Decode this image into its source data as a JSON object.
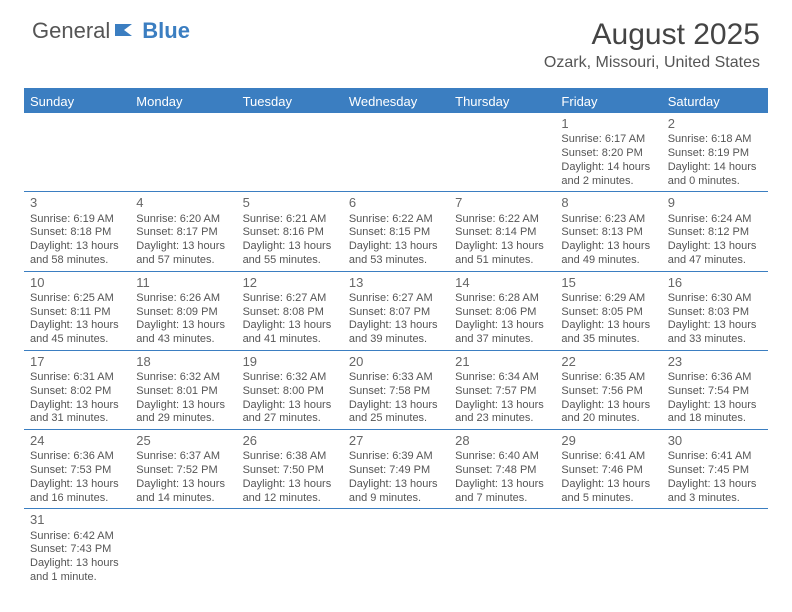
{
  "logo": {
    "part1": "General",
    "part2": "Blue"
  },
  "title": "August 2025",
  "location": "Ozark, Missouri, United States",
  "header_bg": "#3b7ec1",
  "day_names": [
    "Sunday",
    "Monday",
    "Tuesday",
    "Wednesday",
    "Thursday",
    "Friday",
    "Saturday"
  ],
  "weeks": [
    [
      null,
      null,
      null,
      null,
      null,
      {
        "n": "1",
        "sr": "6:17 AM",
        "ss": "8:20 PM",
        "dl": "14 hours and 2 minutes."
      },
      {
        "n": "2",
        "sr": "6:18 AM",
        "ss": "8:19 PM",
        "dl": "14 hours and 0 minutes."
      }
    ],
    [
      {
        "n": "3",
        "sr": "6:19 AM",
        "ss": "8:18 PM",
        "dl": "13 hours and 58 minutes."
      },
      {
        "n": "4",
        "sr": "6:20 AM",
        "ss": "8:17 PM",
        "dl": "13 hours and 57 minutes."
      },
      {
        "n": "5",
        "sr": "6:21 AM",
        "ss": "8:16 PM",
        "dl": "13 hours and 55 minutes."
      },
      {
        "n": "6",
        "sr": "6:22 AM",
        "ss": "8:15 PM",
        "dl": "13 hours and 53 minutes."
      },
      {
        "n": "7",
        "sr": "6:22 AM",
        "ss": "8:14 PM",
        "dl": "13 hours and 51 minutes."
      },
      {
        "n": "8",
        "sr": "6:23 AM",
        "ss": "8:13 PM",
        "dl": "13 hours and 49 minutes."
      },
      {
        "n": "9",
        "sr": "6:24 AM",
        "ss": "8:12 PM",
        "dl": "13 hours and 47 minutes."
      }
    ],
    [
      {
        "n": "10",
        "sr": "6:25 AM",
        "ss": "8:11 PM",
        "dl": "13 hours and 45 minutes."
      },
      {
        "n": "11",
        "sr": "6:26 AM",
        "ss": "8:09 PM",
        "dl": "13 hours and 43 minutes."
      },
      {
        "n": "12",
        "sr": "6:27 AM",
        "ss": "8:08 PM",
        "dl": "13 hours and 41 minutes."
      },
      {
        "n": "13",
        "sr": "6:27 AM",
        "ss": "8:07 PM",
        "dl": "13 hours and 39 minutes."
      },
      {
        "n": "14",
        "sr": "6:28 AM",
        "ss": "8:06 PM",
        "dl": "13 hours and 37 minutes."
      },
      {
        "n": "15",
        "sr": "6:29 AM",
        "ss": "8:05 PM",
        "dl": "13 hours and 35 minutes."
      },
      {
        "n": "16",
        "sr": "6:30 AM",
        "ss": "8:03 PM",
        "dl": "13 hours and 33 minutes."
      }
    ],
    [
      {
        "n": "17",
        "sr": "6:31 AM",
        "ss": "8:02 PM",
        "dl": "13 hours and 31 minutes."
      },
      {
        "n": "18",
        "sr": "6:32 AM",
        "ss": "8:01 PM",
        "dl": "13 hours and 29 minutes."
      },
      {
        "n": "19",
        "sr": "6:32 AM",
        "ss": "8:00 PM",
        "dl": "13 hours and 27 minutes."
      },
      {
        "n": "20",
        "sr": "6:33 AM",
        "ss": "7:58 PM",
        "dl": "13 hours and 25 minutes."
      },
      {
        "n": "21",
        "sr": "6:34 AM",
        "ss": "7:57 PM",
        "dl": "13 hours and 23 minutes."
      },
      {
        "n": "22",
        "sr": "6:35 AM",
        "ss": "7:56 PM",
        "dl": "13 hours and 20 minutes."
      },
      {
        "n": "23",
        "sr": "6:36 AM",
        "ss": "7:54 PM",
        "dl": "13 hours and 18 minutes."
      }
    ],
    [
      {
        "n": "24",
        "sr": "6:36 AM",
        "ss": "7:53 PM",
        "dl": "13 hours and 16 minutes."
      },
      {
        "n": "25",
        "sr": "6:37 AM",
        "ss": "7:52 PM",
        "dl": "13 hours and 14 minutes."
      },
      {
        "n": "26",
        "sr": "6:38 AM",
        "ss": "7:50 PM",
        "dl": "13 hours and 12 minutes."
      },
      {
        "n": "27",
        "sr": "6:39 AM",
        "ss": "7:49 PM",
        "dl": "13 hours and 9 minutes."
      },
      {
        "n": "28",
        "sr": "6:40 AM",
        "ss": "7:48 PM",
        "dl": "13 hours and 7 minutes."
      },
      {
        "n": "29",
        "sr": "6:41 AM",
        "ss": "7:46 PM",
        "dl": "13 hours and 5 minutes."
      },
      {
        "n": "30",
        "sr": "6:41 AM",
        "ss": "7:45 PM",
        "dl": "13 hours and 3 minutes."
      }
    ],
    [
      {
        "n": "31",
        "sr": "6:42 AM",
        "ss": "7:43 PM",
        "dl": "13 hours and 1 minute."
      },
      null,
      null,
      null,
      null,
      null,
      null
    ]
  ],
  "labels": {
    "sunrise": "Sunrise: ",
    "sunset": "Sunset: ",
    "daylight": "Daylight: "
  }
}
